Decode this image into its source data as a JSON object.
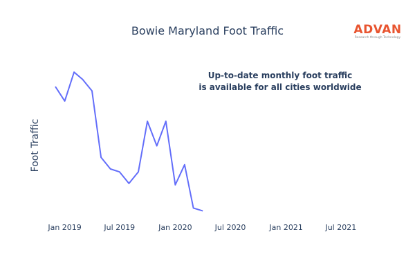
{
  "branding": {
    "logo_text": "ADVAN",
    "logo_tagline": "Research through Technology",
    "logo_color": "#e8542f"
  },
  "chart_data": {
    "type": "line",
    "title": "Bowie Maryland Foot Traffic",
    "xlabel": "",
    "ylabel": "Foot Traffic",
    "annotation": [
      "Up-to-date monthly foot traffic",
      "is available for all cities worldwide"
    ],
    "x_tick_labels": [
      "Jan 2019",
      "Jul 2019",
      "Jan 2020",
      "Jul 2020",
      "Jan 2021",
      "Jul 2021"
    ],
    "xlim": [
      "2018-12-01",
      "2021-09-01"
    ],
    "y_ticks_shown": false,
    "grid": false,
    "line_color": "#636efa",
    "series": [
      {
        "x": [
          "2018-12-01",
          "2019-01-01",
          "2019-02-01",
          "2019-03-01",
          "2019-04-01",
          "2019-05-01",
          "2019-06-01",
          "2019-07-01",
          "2019-08-01",
          "2019-09-01",
          "2019-10-01",
          "2019-11-01",
          "2019-12-01",
          "2020-01-01",
          "2020-02-01",
          "2020-03-01",
          "2020-04-01"
        ],
        "values": [
          86,
          76,
          96,
          91,
          83,
          37,
          29,
          27,
          19,
          27,
          62,
          45,
          62,
          18,
          32,
          2,
          0
        ]
      }
    ],
    "ylim": [
      -5,
      98
    ]
  }
}
